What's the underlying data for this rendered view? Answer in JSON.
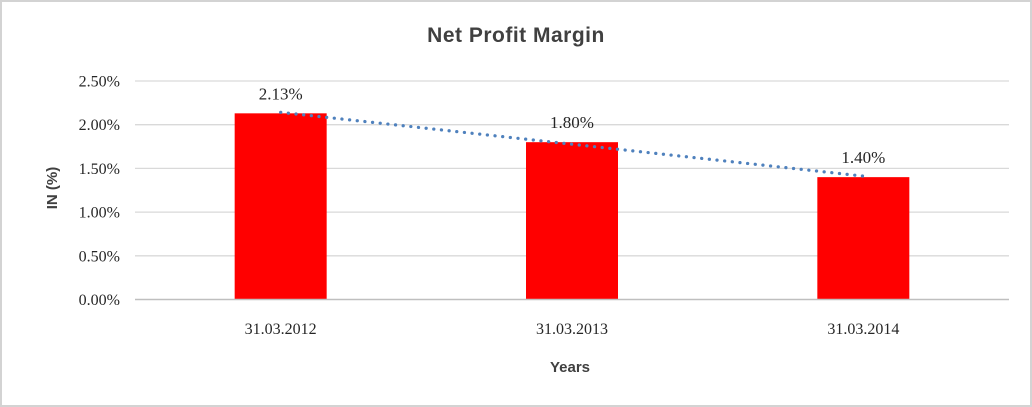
{
  "window": {
    "background": "#ffffff",
    "border_color": "#d3d3d3"
  },
  "chart_data": {
    "type": "bar",
    "title": "Net Profit Margin",
    "xlabel": "Years",
    "ylabel": "IN (%)",
    "categories": [
      "31.03.2012",
      "31.03.2013",
      "31.03.2014"
    ],
    "series": [
      {
        "name": "Net Profit Margin",
        "values": [
          2.13,
          1.8,
          1.4
        ],
        "data_labels": [
          "2.13%",
          "1.80%",
          "1.40%"
        ],
        "color": "#ff0000"
      }
    ],
    "ylim": [
      0,
      2.5
    ],
    "y_ticks": [
      {
        "value": 0.0,
        "label": "0.00%"
      },
      {
        "value": 0.5,
        "label": "0.50%"
      },
      {
        "value": 1.0,
        "label": "1.00%"
      },
      {
        "value": 1.5,
        "label": "1.50%"
      },
      {
        "value": 2.0,
        "label": "2.00%"
      },
      {
        "value": 2.5,
        "label": "2.50%"
      }
    ],
    "grid": true,
    "legend": "none",
    "trendline": {
      "type": "linear",
      "style": "dotted",
      "color": "#4f81bd"
    },
    "colors": {
      "gridline": "#d9d9d9",
      "axis_line": "#bfbfbf",
      "title_text": "#404040",
      "axis_title_text": "#404040",
      "tick_text": "#262626",
      "data_label_text": "#262626"
    }
  }
}
